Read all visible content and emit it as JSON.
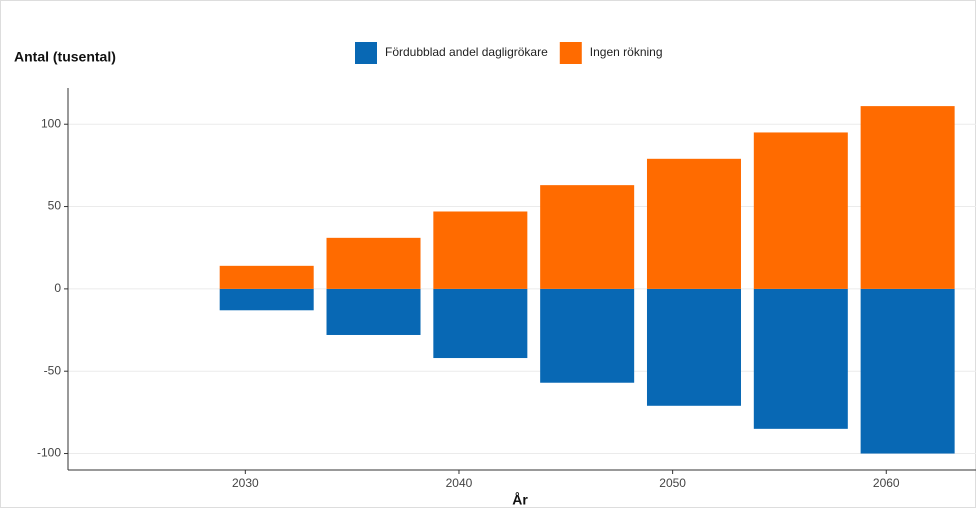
{
  "chart_data": {
    "type": "bar",
    "stacked": true,
    "y_label": "Antal (tusental)",
    "x_label": "År",
    "x": [
      2031,
      2036,
      2041,
      2046,
      2051,
      2056,
      2061
    ],
    "series": [
      {
        "name": "Fördubblad andel dagligrökare",
        "color": "#0868b4",
        "values": [
          -13,
          -28,
          -42,
          -57,
          -71,
          -85,
          -100
        ]
      },
      {
        "name": "Ingen rökning",
        "color": "#ff6b00",
        "values": [
          14,
          31,
          47,
          63,
          79,
          95,
          111
        ]
      }
    ],
    "xlim": [
      2021.7,
      2064.2
    ],
    "xticks": [
      2030,
      2040,
      2050,
      2060
    ],
    "ylim": [
      -110,
      122
    ],
    "yticks": [
      -100,
      -50,
      0,
      50,
      100
    ],
    "grid": true,
    "legend": "top"
  }
}
